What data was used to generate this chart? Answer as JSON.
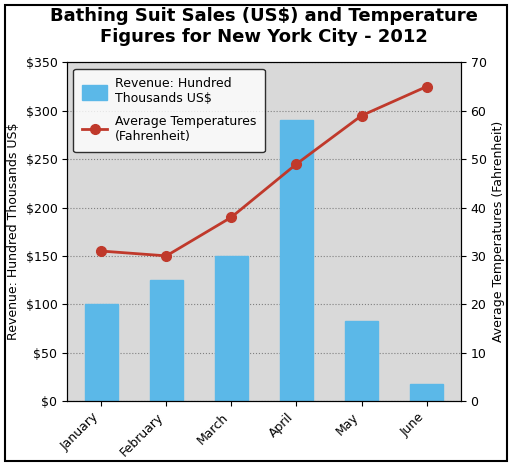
{
  "title": "Bathing Suit Sales (US$) and Temperature\nFigures for New York City - 2012",
  "months": [
    "January",
    "February",
    "March",
    "April",
    "May",
    "June"
  ],
  "revenue": [
    100,
    125,
    150,
    290,
    83,
    18
  ],
  "temperatures": [
    31,
    30,
    38,
    49,
    59,
    65
  ],
  "bar_color": "#5bb8e8",
  "line_color": "#c0392b",
  "ylabel_left": "Revenue: Hundred Thousands US$",
  "ylabel_right": "Average Temperatures (Fahrenheit)",
  "yticks_left": [
    0,
    50,
    100,
    150,
    200,
    250,
    300,
    350
  ],
  "ytick_labels_left": [
    "$0",
    "$50",
    "$100",
    "$150",
    "$200",
    "$250",
    "$300",
    "$350"
  ],
  "ylim_left": [
    0,
    350
  ],
  "yticks_right": [
    0,
    10,
    20,
    30,
    40,
    50,
    60,
    70
  ],
  "ylim_right": [
    0,
    70
  ],
  "legend_bar_label": "Revenue: Hundred\nThousands US$",
  "legend_line_label": "Average Temperatures\n(Fahrenheit)",
  "background_color": "#d9d9d9",
  "outer_background": "#ffffff",
  "title_fontsize": 13,
  "axis_label_fontsize": 9,
  "tick_fontsize": 9
}
